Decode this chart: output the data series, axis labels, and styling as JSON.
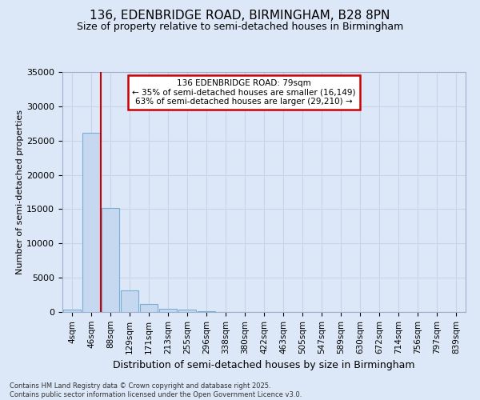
{
  "title_line1": "136, EDENBRIDGE ROAD, BIRMINGHAM, B28 8PN",
  "title_line2": "Size of property relative to semi-detached houses in Birmingham",
  "xlabel": "Distribution of semi-detached houses by size in Birmingham",
  "ylabel": "Number of semi-detached properties",
  "categories": [
    "4sqm",
    "46sqm",
    "88sqm",
    "129sqm",
    "171sqm",
    "213sqm",
    "255sqm",
    "296sqm",
    "338sqm",
    "380sqm",
    "422sqm",
    "463sqm",
    "505sqm",
    "547sqm",
    "589sqm",
    "630sqm",
    "672sqm",
    "714sqm",
    "756sqm",
    "797sqm",
    "839sqm"
  ],
  "values": [
    350,
    26100,
    15200,
    3200,
    1200,
    450,
    300,
    100,
    0,
    0,
    0,
    0,
    0,
    0,
    0,
    0,
    0,
    0,
    0,
    0,
    0
  ],
  "bar_color": "#c5d8f0",
  "bar_edge_color": "#7aadd4",
  "property_line_x": 1.5,
  "annotation_text_line1": "136 EDENBRIDGE ROAD: 79sqm",
  "annotation_text_line2": "← 35% of semi-detached houses are smaller (16,149)",
  "annotation_text_line3": "63% of semi-detached houses are larger (29,210) →",
  "annotation_box_color": "#ffffff",
  "annotation_box_edge": "#cc0000",
  "red_line_color": "#cc0000",
  "grid_color": "#c8d4e8",
  "bg_color": "#dce8f8",
  "ylim": [
    0,
    35000
  ],
  "yticks": [
    0,
    5000,
    10000,
    15000,
    20000,
    25000,
    30000,
    35000
  ],
  "footer_line1": "Contains HM Land Registry data © Crown copyright and database right 2025.",
  "footer_line2": "Contains public sector information licensed under the Open Government Licence v3.0."
}
